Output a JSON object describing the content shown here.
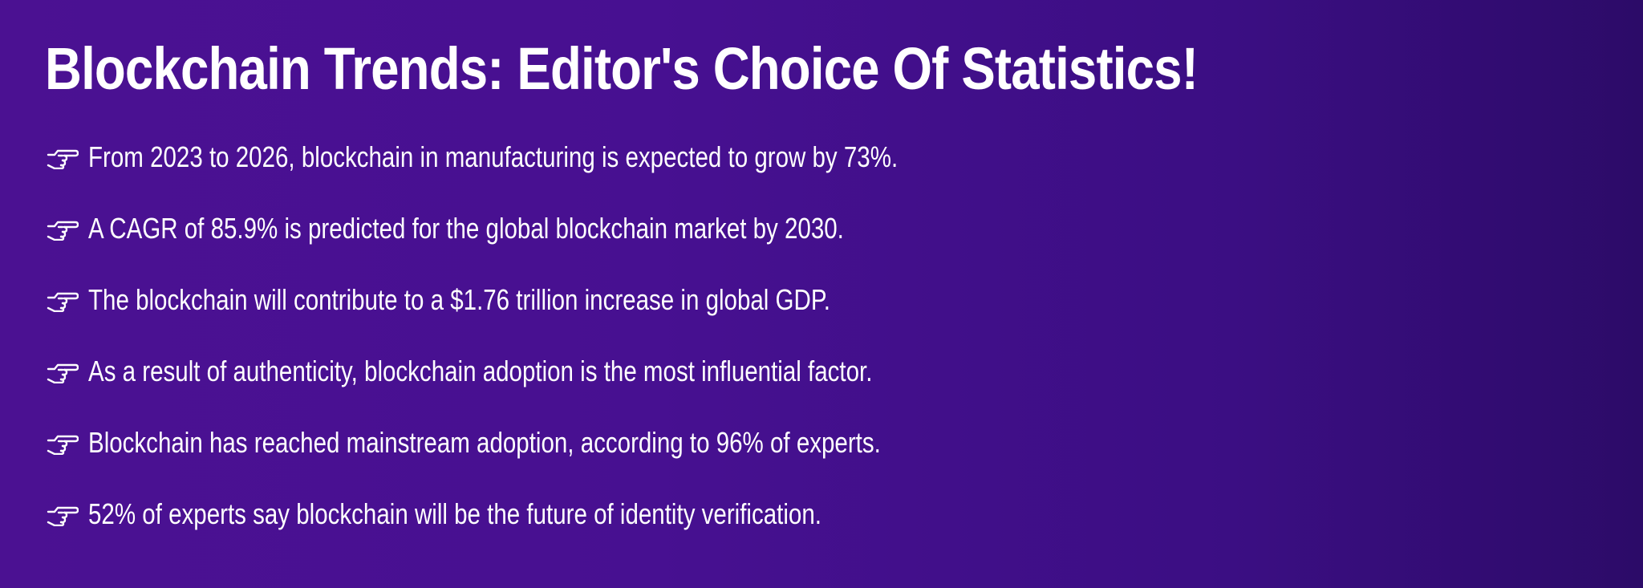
{
  "page": {
    "title": "Blockchain Trends: Editor's Choice Of Statistics!",
    "bullet_icon": "pointing-hand-icon",
    "colors": {
      "background_left": "#4b1192",
      "background_right": "#2c0b68",
      "text": "#ffffff"
    },
    "items": [
      {
        "text": "From 2023 to 2026, blockchain in manufacturing is expected to grow by 73%."
      },
      {
        "text": "A CAGR of 85.9% is predicted for the global blockchain market by 2030."
      },
      {
        "text": "The blockchain will contribute to a $1.76 trillion increase in global GDP."
      },
      {
        "text": "As a result of authenticity, blockchain adoption is the most influential factor."
      },
      {
        "text": "Blockchain has reached mainstream adoption, according to 96% of experts."
      },
      {
        "text": "52% of experts say blockchain will be the future of identity verification."
      }
    ]
  }
}
